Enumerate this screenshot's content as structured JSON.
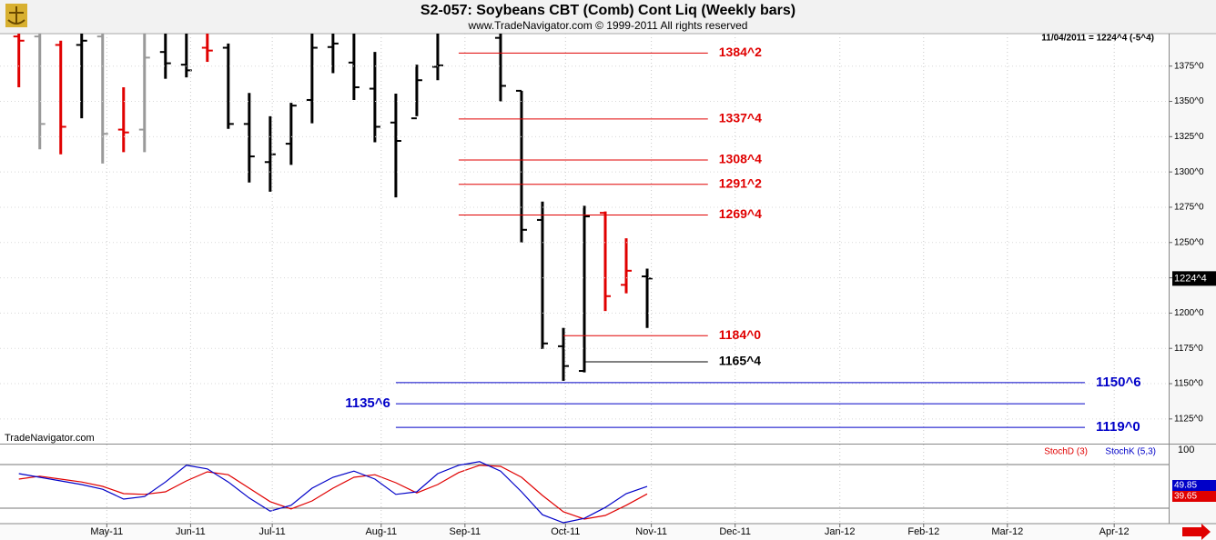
{
  "chart_data": [
    {
      "type": "ohlc",
      "title": "S2-057:  Soybeans CBT (Comb) Cont Liq  (Weekly bars)",
      "subtitle": "www.TradeNavigator.com © 1999-2011 All rights reserved",
      "info": "11/04/2011 = 1224^4 (-5^4)",
      "watermark": "TradeNavigator.com",
      "x": [
        0,
        1,
        2,
        3,
        4,
        5,
        6,
        7,
        8,
        9,
        10,
        11,
        12,
        13,
        14,
        15,
        16,
        17,
        18,
        19,
        20,
        21,
        22,
        23,
        24,
        25,
        26,
        27,
        28,
        29,
        30
      ],
      "open": [
        1396,
        1396,
        1390,
        1390,
        1396,
        1330,
        1330,
        1385,
        1376,
        1388,
        1388,
        1334,
        1307,
        1320,
        1351,
        1388.5,
        1377.5,
        1359,
        1335,
        1338,
        1374.5,
        null,
        null,
        1395,
        1357.5,
        1266,
        1176.5,
        1159,
        1271,
        1220,
        1226
      ],
      "high": [
        1398,
        1398,
        1393,
        1398,
        1398,
        1360,
        1398,
        1398,
        1398,
        1398,
        1391,
        1356,
        1339.5,
        1349,
        1398,
        1398,
        1398,
        1385,
        1355.5,
        1376,
        1398,
        null,
        null,
        1398,
        1357.5,
        1279,
        1189.5,
        1276,
        1272,
        1253,
        1231.5
      ],
      "low": [
        1360,
        1316,
        1312.5,
        1338,
        1306,
        1314,
        1314,
        1366,
        1367,
        1378,
        1330.5,
        1292.5,
        1286,
        1305,
        1334.5,
        1370,
        1351,
        1321,
        1282,
        1339.5,
        1365,
        null,
        null,
        1350,
        1250,
        1174.5,
        1152,
        1158,
        1201.5,
        1214,
        1189.5
      ],
      "close": [
        1393,
        1334,
        1332,
        1393,
        1327,
        1328,
        1381,
        1377,
        1372,
        1386,
        1334,
        1311,
        1312.5,
        1347,
        1388,
        1391,
        1360,
        1332,
        1322,
        1365,
        1375.5,
        null,
        null,
        1361,
        1259,
        1178.5,
        1162.5,
        1268.5,
        1212,
        1230,
        1224.5
      ],
      "colors": [
        "#e00000",
        "#999999",
        "#e00000",
        "#000000",
        "#999999",
        "#e00000",
        "#999999",
        "#000000",
        "#000000",
        "#e00000",
        "#000000",
        "#000000",
        "#000000",
        "#000000",
        "#000000",
        "#000000",
        "#000000",
        "#000000",
        "#000000",
        "#000000",
        "#000000",
        null,
        null,
        "#000000",
        "#000000",
        "#000000",
        "#000000",
        "#000000",
        "#e00000",
        "#e00000",
        "#000000"
      ],
      "xlim": [
        -0.9,
        54.9
      ],
      "xticks": [
        {
          "value": 4.2,
          "label": "May-11"
        },
        {
          "value": 8.2,
          "label": "Jun-11"
        },
        {
          "value": 12.1,
          "label": "Jul-11"
        },
        {
          "value": 17.3,
          "label": "Aug-11"
        },
        {
          "value": 21.3,
          "label": "Sep-11"
        },
        {
          "value": 26.1,
          "label": "Oct-11"
        },
        {
          "value": 30.2,
          "label": "Nov-11"
        },
        {
          "value": 34.2,
          "label": "Dec-11"
        },
        {
          "value": 39.2,
          "label": "Jan-12"
        },
        {
          "value": 43.2,
          "label": "Feb-12"
        },
        {
          "value": 47.2,
          "label": "Mar-12"
        },
        {
          "value": 52.3,
          "label": "Apr-12"
        }
      ],
      "ylim": [
        1107.5,
        1398
      ],
      "yticks": [
        {
          "value": 1125,
          "label": "1125^0"
        },
        {
          "value": 1150,
          "label": "1150^0"
        },
        {
          "value": 1175,
          "label": "1175^0"
        },
        {
          "value": 1200,
          "label": "1200^0"
        },
        {
          "value": 1225,
          "label": "1225^0"
        },
        {
          "value": 1250,
          "label": "1250^0"
        },
        {
          "value": 1275,
          "label": "1275^0"
        },
        {
          "value": 1300,
          "label": "1300^0"
        },
        {
          "value": 1325,
          "label": "1325^0"
        },
        {
          "value": 1350,
          "label": "1350^0"
        },
        {
          "value": 1375,
          "label": "1375^0"
        }
      ],
      "levels": [
        {
          "value": 1384.25,
          "label": "1384^2",
          "color": "#e00000"
        },
        {
          "value": 1337.5,
          "label": "1337^4",
          "color": "#e00000"
        },
        {
          "value": 1308.5,
          "label": "1308^4",
          "color": "#e00000"
        },
        {
          "value": 1291.25,
          "label": "1291^2",
          "color": "#e00000"
        },
        {
          "value": 1269.5,
          "label": "1269^4",
          "color": "#e00000"
        },
        {
          "value": 1184,
          "label": "1184^0",
          "color": "#e00000"
        },
        {
          "value": 1165.5,
          "label": "1165^4",
          "color": "#000000"
        },
        {
          "value": 1150.75,
          "label": "1150^6",
          "color": "#0000c8"
        },
        {
          "value": 1135.75,
          "label": "1135^6",
          "color": "#0000c8"
        },
        {
          "value": 1119,
          "label": "1119^0",
          "color": "#0000c8"
        }
      ],
      "last": {
        "value": 1224.5,
        "label": "1224^4"
      },
      "grid": true
    },
    {
      "type": "line",
      "x": [
        0,
        1,
        2,
        3,
        4,
        5,
        6,
        7,
        8,
        9,
        10,
        11,
        12,
        13,
        14,
        15,
        16,
        17,
        18,
        19,
        20,
        21,
        22,
        23,
        24,
        25,
        26,
        27,
        28,
        29,
        30
      ],
      "xlim": [
        -0.9,
        54.9
      ],
      "ylim": [
        0,
        100
      ],
      "yticks": [
        100
      ],
      "levels": [
        80,
        20
      ],
      "series": [
        {
          "name": "StochD (3)",
          "color": "#e00000",
          "values": [
            60,
            64,
            60,
            56,
            50,
            40,
            39,
            42.5,
            57.5,
            70,
            66,
            47.5,
            29,
            19,
            30,
            47.5,
            62.5,
            66,
            55,
            41,
            52.5,
            69,
            79,
            77.5,
            62.5,
            37.5,
            15,
            5,
            10,
            24,
            39.65
          ]
        },
        {
          "name": "StochK (5,3)",
          "color": "#0000c8",
          "values": [
            67.5,
            62.5,
            57.5,
            52.5,
            46,
            32.5,
            36,
            56,
            79,
            74,
            56,
            34,
            16,
            24,
            47.5,
            62.5,
            71,
            60,
            39,
            42.5,
            67.5,
            79,
            84,
            71,
            42.5,
            11,
            0,
            6,
            21,
            40,
            49.85
          ]
        }
      ]
    }
  ]
}
